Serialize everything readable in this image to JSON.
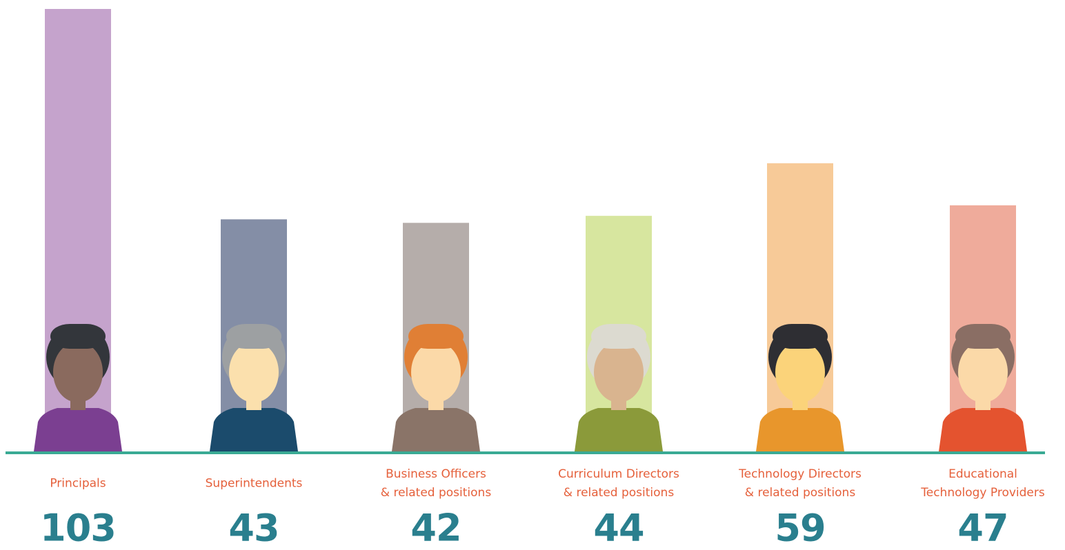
{
  "chart_data": {
    "type": "bar",
    "categories": [
      "Principals",
      "Superintendents",
      "Business Officers\n& related positions",
      "Curriculum Directors\n& related positions",
      "Technology Directors\n& related positions",
      "Educational\nTechnology Providers"
    ],
    "values": [
      103,
      43,
      42,
      44,
      59,
      47
    ],
    "colors": [
      "#c5a3cc",
      "#848ea6",
      "#b5adaa",
      "#d7e69f",
      "#f7ca98",
      "#efab9b"
    ]
  }
}
